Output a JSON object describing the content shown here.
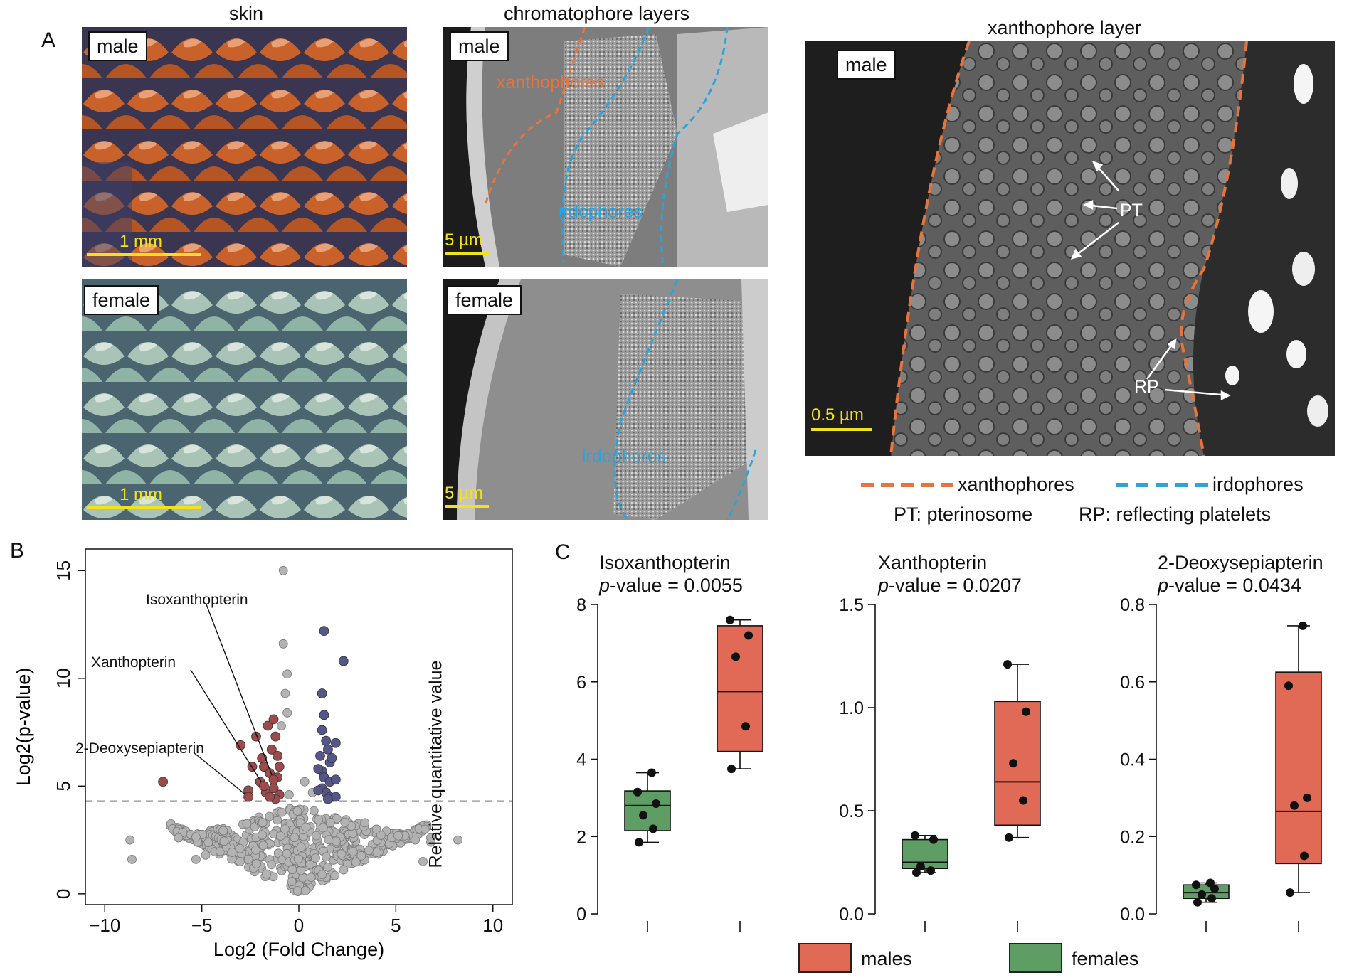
{
  "panel_a": {
    "letter": "A",
    "col_titles": {
      "skin": "skin",
      "chromatophore": "chromatophore layers",
      "xanthophore": "xanthophore layer"
    },
    "labels": {
      "male": "male",
      "female": "female"
    },
    "scale": {
      "mm": "1 mm",
      "um5": "5 µm",
      "um05": "0.5 µm"
    },
    "em_labels": {
      "xanthophores": "xanthophores",
      "irdophores": "irdophores",
      "pt": "PT",
      "rp": "RP"
    },
    "legend": {
      "xanthophores": "xanthophores",
      "irdophores": "irdophores",
      "pt_def": "PT: pterinosome",
      "rp_def": "RP: reflecting platelets"
    },
    "colors": {
      "xanthophore": "#e8743b",
      "irdophore": "#2aa4dd",
      "scale_bar": "#f5e11a",
      "male_skin": "#c9622a",
      "female_skin": "#8fb3a5"
    }
  },
  "panel_b": {
    "letter": "B"
  },
  "panel_c": {
    "letter": "C"
  },
  "legend": {
    "males": "males",
    "females": "females",
    "males_color": "#e06a55",
    "females_color": "#5e9e64"
  },
  "chart_data": [
    {
      "type": "scatter",
      "title": "",
      "xlabel": "Log2 (Fold Change)",
      "ylabel": "Log2(p-value)",
      "xlim": [
        -11,
        11
      ],
      "ylim": [
        -0.5,
        16
      ],
      "xticks": [
        -10,
        -5,
        0,
        5,
        10
      ],
      "xtick_labels": [
        "−10",
        "−5",
        "0",
        "5",
        "10"
      ],
      "yticks": [
        0,
        5,
        10,
        15
      ],
      "yticks_labels": [
        "0",
        "5",
        "10",
        "15"
      ],
      "threshold": 4.3,
      "colors": {
        "down": "#9c4a4a",
        "up": "#55578a",
        "ns": "#b3b3b3"
      },
      "series": [
        {
          "name": "down",
          "points": [
            [
              -7.0,
              5.2
            ],
            [
              -3.0,
              6.9
            ],
            [
              -2.6,
              4.8
            ],
            [
              -2.4,
              5.9
            ],
            [
              -2.2,
              7.3
            ],
            [
              -2.0,
              5.2
            ],
            [
              -1.9,
              6.3
            ],
            [
              -1.8,
              5.9
            ],
            [
              -1.7,
              4.7
            ],
            [
              -1.6,
              7.8
            ],
            [
              -1.5,
              5.6
            ],
            [
              -1.4,
              6.7
            ],
            [
              -1.3,
              4.9
            ],
            [
              -1.3,
              8.1
            ],
            [
              -1.2,
              7.3
            ],
            [
              -1.1,
              5.4
            ],
            [
              -1.1,
              6.4
            ],
            [
              -1.0,
              4.6
            ],
            [
              -1.0,
              5.9
            ],
            [
              -1.2,
              4.4
            ],
            [
              -1.5,
              4.5
            ]
          ]
        },
        {
          "name": "up",
          "points": [
            [
              1.3,
              12.2
            ],
            [
              1.2,
              9.3
            ],
            [
              1.3,
              8.3
            ],
            [
              1.2,
              7.6
            ],
            [
              1.4,
              7.1
            ],
            [
              1.5,
              6.7
            ],
            [
              1.1,
              6.4
            ],
            [
              1.6,
              6.1
            ],
            [
              1.2,
              5.7
            ],
            [
              1.3,
              5.4
            ],
            [
              1.6,
              5.2
            ],
            [
              1.2,
              4.9
            ],
            [
              1.4,
              4.7
            ],
            [
              1.6,
              4.5
            ],
            [
              1.9,
              4.5
            ],
            [
              1.9,
              5.3
            ],
            [
              1.7,
              6.3
            ],
            [
              1.9,
              7.0
            ],
            [
              1.0,
              5.8
            ],
            [
              1.5,
              4.4
            ],
            [
              2.3,
              10.8
            ],
            [
              1.0,
              4.8
            ]
          ]
        },
        {
          "name": "labeled",
          "points": [
            [
              -1.3,
              5.3
            ],
            [
              -1.8,
              5.0
            ],
            [
              -2.6,
              4.5
            ]
          ]
        }
      ],
      "annotations": [
        "Isoxanthopterin",
        "Xanthopterin",
        "2-Deoxysepiapterin"
      ]
    },
    {
      "type": "box",
      "title": "Isoxanthopterin",
      "subtitle_prefix": "p",
      "subtitle_suffix": "-value = 0.0055",
      "ylabel": "Relative quantitative value",
      "ylim": [
        0,
        8
      ],
      "yticks": [
        0,
        2,
        4,
        6,
        8
      ],
      "ytick_labels": [
        "0",
        "2",
        "4",
        "6",
        "8"
      ],
      "groups": [
        {
          "name": "females",
          "whisker": [
            1.85,
            3.65
          ],
          "q1": 2.15,
          "median": 2.8,
          "q3": 3.18,
          "points": [
            1.85,
            2.2,
            2.55,
            2.85,
            3.15,
            3.65
          ]
        },
        {
          "name": "males",
          "whisker": [
            3.75,
            7.6
          ],
          "q1": 4.2,
          "median": 5.75,
          "q3": 7.45,
          "points": [
            3.75,
            4.85,
            6.65,
            7.2,
            7.6
          ]
        }
      ]
    },
    {
      "type": "box",
      "title": "Xanthopterin",
      "subtitle_prefix": "p",
      "subtitle_suffix": "-value = 0.0207",
      "ylabel": "",
      "ylim": [
        0,
        1.5
      ],
      "yticks": [
        0,
        0.5,
        1.0,
        1.5
      ],
      "ytick_labels": [
        "0.0",
        "0.5",
        "1.0",
        "1.5"
      ],
      "groups": [
        {
          "name": "females",
          "whisker": [
            0.2,
            0.38
          ],
          "q1": 0.22,
          "median": 0.25,
          "q3": 0.36,
          "points": [
            0.2,
            0.21,
            0.23,
            0.36,
            0.38
          ]
        },
        {
          "name": "males",
          "whisker": [
            0.37,
            1.21
          ],
          "q1": 0.43,
          "median": 0.64,
          "q3": 1.03,
          "points": [
            0.37,
            0.55,
            0.73,
            0.98,
            1.21
          ]
        }
      ]
    },
    {
      "type": "box",
      "title": "2-Deoxysepiapterin",
      "subtitle_prefix": "p",
      "subtitle_suffix": "-value = 0.0434",
      "ylabel": "",
      "ylim": [
        0,
        0.8
      ],
      "yticks": [
        0,
        0.2,
        0.4,
        0.6,
        0.8
      ],
      "ytick_labels": [
        "0.0",
        "0.2",
        "0.4",
        "0.6",
        "0.8"
      ],
      "groups": [
        {
          "name": "females",
          "whisker": [
            0.03,
            0.08
          ],
          "q1": 0.04,
          "median": 0.055,
          "q3": 0.075,
          "points": [
            0.03,
            0.04,
            0.05,
            0.065,
            0.075,
            0.08
          ]
        },
        {
          "name": "males",
          "whisker": [
            0.055,
            0.745
          ],
          "q1": 0.13,
          "median": 0.265,
          "q3": 0.625,
          "points": [
            0.055,
            0.15,
            0.28,
            0.3,
            0.59,
            0.745
          ]
        }
      ]
    }
  ]
}
